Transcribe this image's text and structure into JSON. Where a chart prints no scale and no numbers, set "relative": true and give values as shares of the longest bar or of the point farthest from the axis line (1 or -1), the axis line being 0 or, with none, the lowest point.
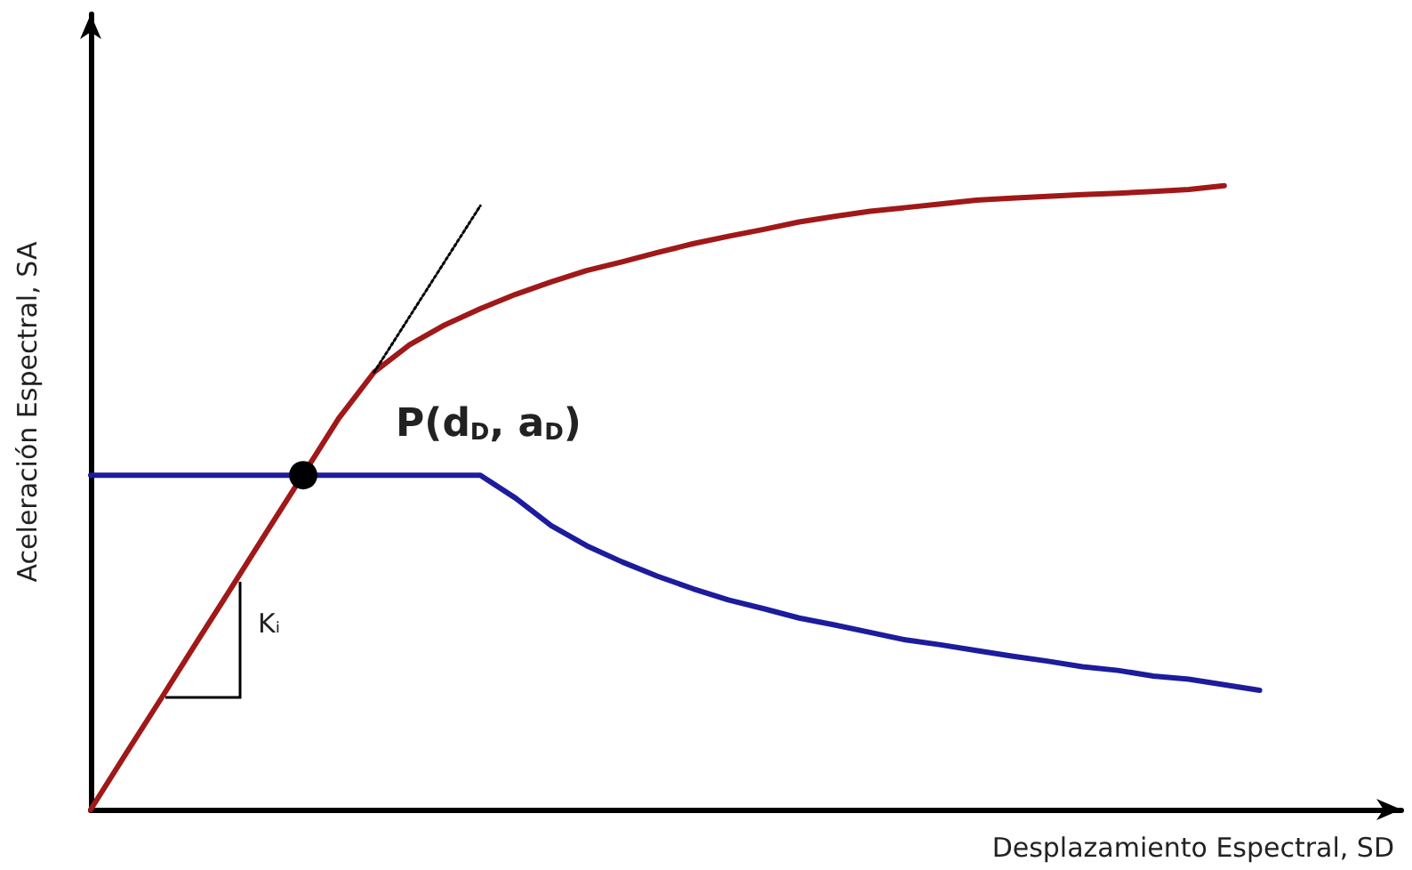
{
  "chart_data": {
    "type": "line",
    "relative": true,
    "xlabel": "Desplazamiento Espectral, SD",
    "ylabel": "Aceleración Espectral, SA",
    "grid": false,
    "marker": "none",
    "line_style": "solid",
    "categories": [
      null,
      null,
      null,
      null,
      null,
      null,
      null,
      null,
      null,
      null,
      null,
      null,
      null,
      null,
      null,
      null,
      null,
      null,
      null,
      null,
      null,
      null,
      null,
      null,
      null,
      null,
      null,
      null,
      null,
      null,
      null,
      null,
      null,
      null,
      null,
      null,
      null,
      null
    ],
    "series": [
      {
        "color": "#a01818",
        "values": [
          0,
          0.09,
          0.179,
          0.269,
          0.358,
          0.448,
          0.537,
          0.627,
          0.701,
          0.745,
          0.777,
          0.803,
          0.826,
          0.846,
          0.864,
          0.878,
          0.893,
          0.907,
          0.919,
          0.93,
          0.942,
          0.951,
          0.959,
          0.965,
          0.971,
          0.977,
          0.98,
          0.983,
          0.986,
          0.988,
          0.991,
          0.994,
          1.0,
          null,
          null,
          null,
          null,
          null
        ]
      },
      {
        "color": "#1c1c9c",
        "values": [
          0.536,
          0.536,
          0.536,
          0.536,
          0.536,
          0.536,
          0.536,
          0.536,
          0.536,
          0.536,
          0.536,
          0.536,
          0.499,
          0.455,
          0.423,
          0.397,
          0.374,
          0.354,
          0.336,
          0.322,
          0.307,
          0.296,
          0.284,
          0.272,
          0.264,
          0.255,
          0.246,
          0.238,
          0.229,
          0.223,
          0.214,
          0.209,
          0.2,
          0.191,
          null,
          null,
          null,
          null
        ]
      },
      {
        "color": "#000000",
        "line_style": "dotted",
        "values": [
          null,
          null,
          null,
          null,
          null,
          null,
          null,
          null,
          0.701,
          0.79,
          0.879,
          0.968,
          null,
          null,
          null,
          null,
          null,
          null,
          null,
          null,
          null,
          null,
          null,
          null,
          null,
          null,
          null,
          null,
          null,
          null,
          null,
          null,
          null,
          null,
          null,
          null,
          null,
          null
        ]
      },
      {
        "color": "#000000",
        "marker": "circle",
        "values": [
          null,
          null,
          null,
          null,
          null,
          null,
          0.536,
          null,
          null,
          null,
          null,
          null,
          null,
          null,
          null,
          null,
          null,
          null,
          null,
          null,
          null,
          null,
          null,
          null,
          null,
          null,
          null,
          null,
          null,
          null,
          null,
          null,
          null,
          null,
          null,
          null,
          null,
          null
        ]
      }
    ],
    "annotations": [
      "P(d$_{D}$, a$_{D}$)",
      "Kᵢ"
    ]
  }
}
